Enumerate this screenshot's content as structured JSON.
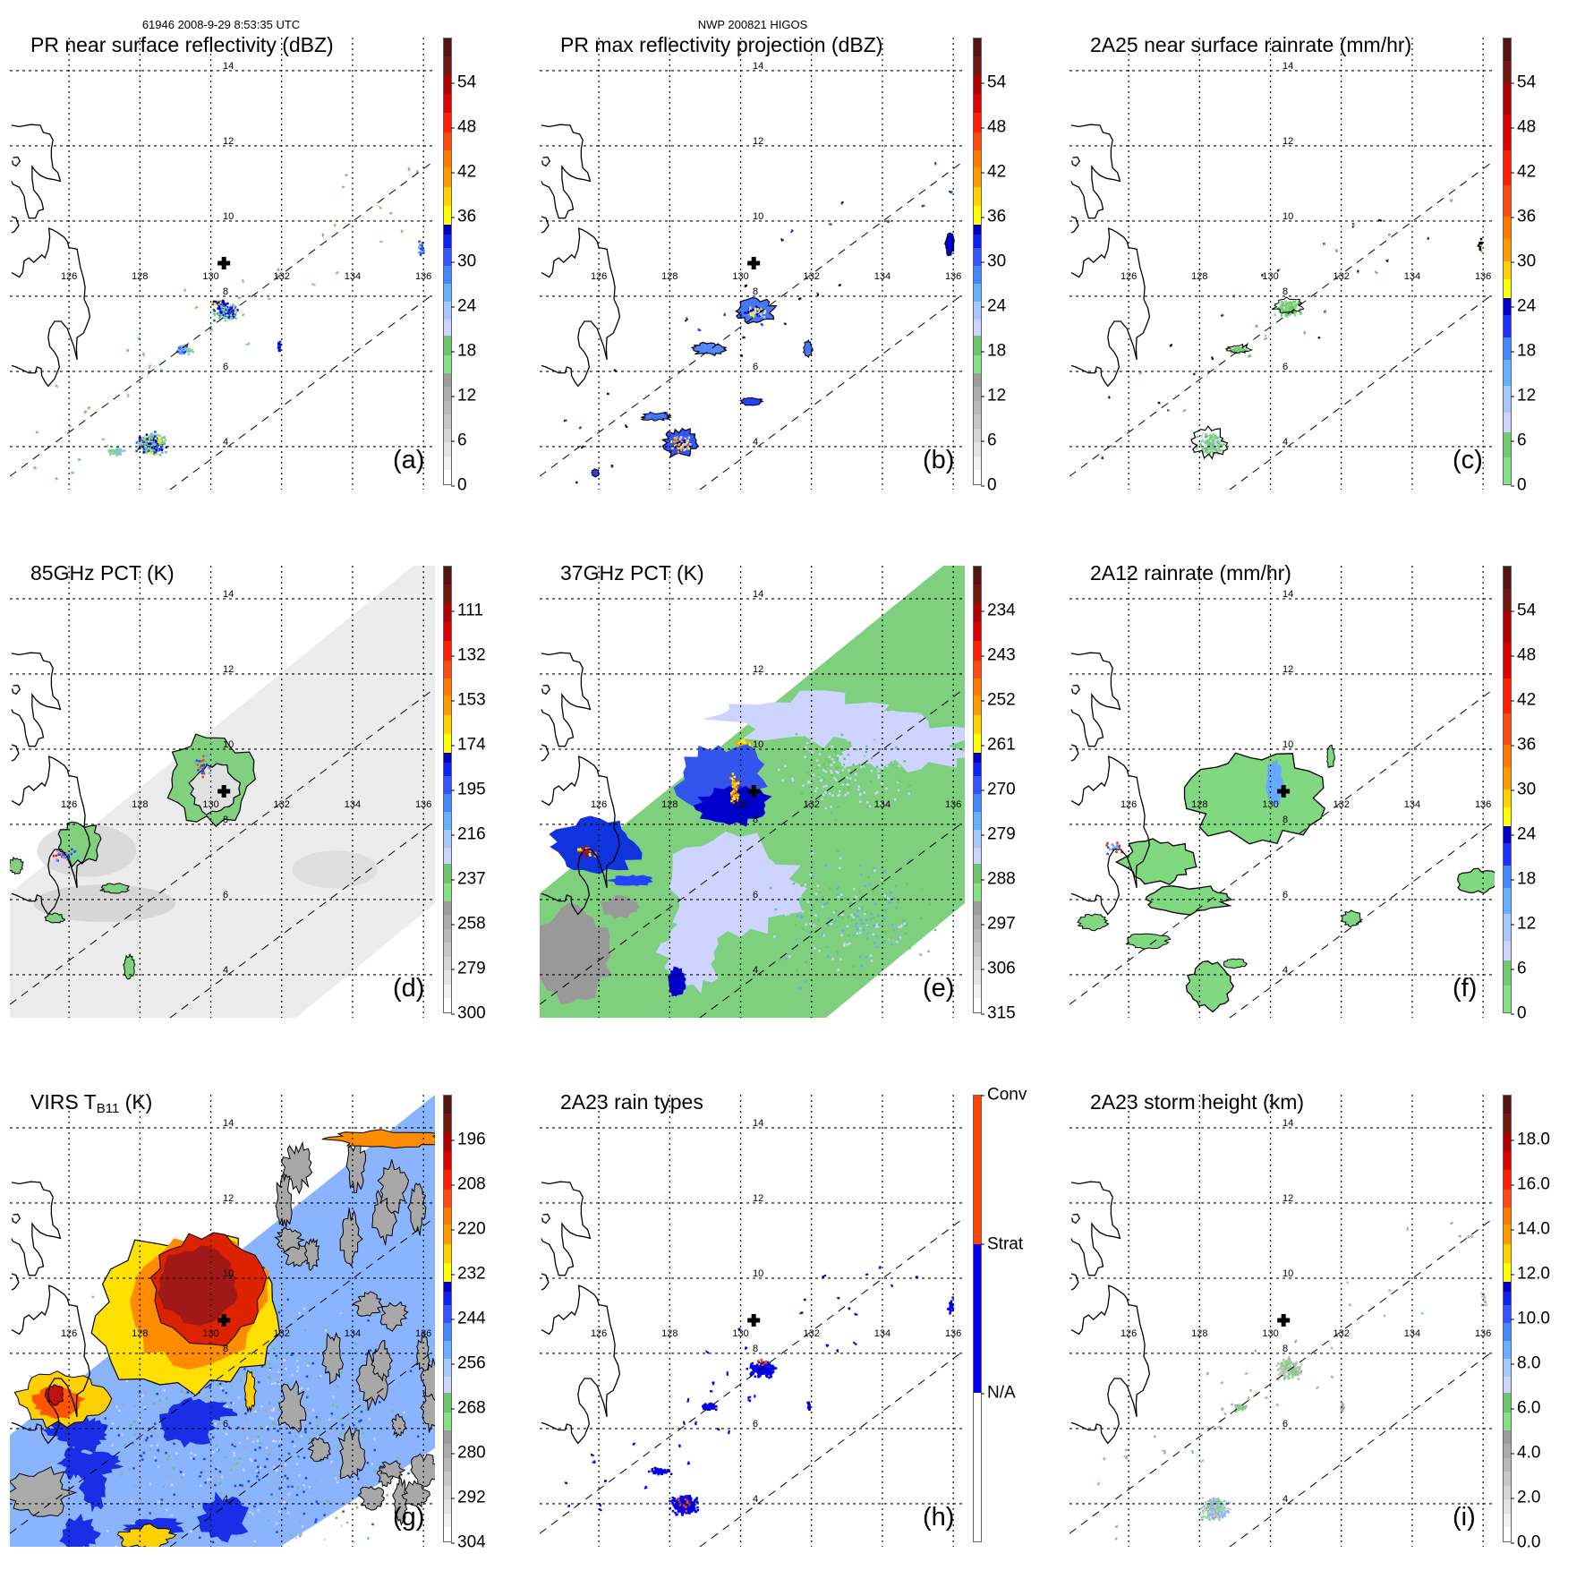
{
  "header": {
    "orbit_time": "61946 2008-9-29 8:53:35 UTC",
    "storm": "NWP 200821 HIGOS"
  },
  "lon_labels": [
    "126",
    "128",
    "130",
    "132",
    "134",
    "136"
  ],
  "lat_labels": [
    "14",
    "12",
    "10",
    "8",
    "6",
    "4"
  ],
  "panels": [
    {
      "id": "a",
      "title": "PR near surface reflectivity (dBZ)",
      "label": "(a)",
      "colorbar_range": [
        0,
        60
      ],
      "ticks": [
        {
          "text": "54",
          "value": 54
        },
        {
          "text": "48",
          "value": 48
        },
        {
          "text": "42",
          "value": 42
        },
        {
          "text": "36",
          "value": 36
        },
        {
          "text": "30",
          "value": 30
        },
        {
          "text": "24",
          "value": 24
        },
        {
          "text": "18",
          "value": 18
        },
        {
          "text": "12",
          "value": 12
        },
        {
          "text": "6",
          "value": 6
        },
        {
          "text": "0",
          "value": 0
        }
      ]
    },
    {
      "id": "b",
      "title": "PR max reflectivity projection (dBZ)",
      "label": "(b)",
      "colorbar_range": [
        0,
        60
      ],
      "ticks": [
        {
          "text": "54",
          "value": 54
        },
        {
          "text": "48",
          "value": 48
        },
        {
          "text": "42",
          "value": 42
        },
        {
          "text": "36",
          "value": 36
        },
        {
          "text": "30",
          "value": 30
        },
        {
          "text": "24",
          "value": 24
        },
        {
          "text": "18",
          "value": 18
        },
        {
          "text": "12",
          "value": 12
        },
        {
          "text": "6",
          "value": 6
        },
        {
          "text": "0",
          "value": 0
        }
      ]
    },
    {
      "id": "c",
      "title": "2A25 near surface rainrate (mm/hr)",
      "label": "(c)",
      "colorbar_range": [
        0,
        60
      ],
      "ticks": [
        {
          "text": "54",
          "value": 54
        },
        {
          "text": "48",
          "value": 48
        },
        {
          "text": "42",
          "value": 42
        },
        {
          "text": "36",
          "value": 36
        },
        {
          "text": "30",
          "value": 30
        },
        {
          "text": "24",
          "value": 24
        },
        {
          "text": "18",
          "value": 18
        },
        {
          "text": "12",
          "value": 12
        },
        {
          "text": "6",
          "value": 6
        },
        {
          "text": "0",
          "value": 0
        }
      ]
    },
    {
      "id": "d",
      "title": "85GHz PCT (K)",
      "label": "(d)",
      "colorbar_range": [
        300,
        90
      ],
      "ticks": [
        {
          "text": "111",
          "value": 111
        },
        {
          "text": "132",
          "value": 132
        },
        {
          "text": "153",
          "value": 153
        },
        {
          "text": "174",
          "value": 174
        },
        {
          "text": "195",
          "value": 195
        },
        {
          "text": "216",
          "value": 216
        },
        {
          "text": "237",
          "value": 237
        },
        {
          "text": "258",
          "value": 258
        },
        {
          "text": "279",
          "value": 279
        },
        {
          "text": "300",
          "value": 300
        }
      ]
    },
    {
      "id": "e",
      "title": "37GHz PCT (K)",
      "label": "(e)",
      "colorbar_range": [
        315,
        225
      ],
      "ticks": [
        {
          "text": "234",
          "value": 234
        },
        {
          "text": "243",
          "value": 243
        },
        {
          "text": "252",
          "value": 252
        },
        {
          "text": "261",
          "value": 261
        },
        {
          "text": "270",
          "value": 270
        },
        {
          "text": "279",
          "value": 279
        },
        {
          "text": "288",
          "value": 288
        },
        {
          "text": "297",
          "value": 297
        },
        {
          "text": "306",
          "value": 306
        },
        {
          "text": "315",
          "value": 315
        }
      ]
    },
    {
      "id": "f",
      "title": "2A12 rainrate (mm/hr)",
      "label": "(f)",
      "colorbar_range": [
        0,
        60
      ],
      "ticks": [
        {
          "text": "54",
          "value": 54
        },
        {
          "text": "48",
          "value": 48
        },
        {
          "text": "42",
          "value": 42
        },
        {
          "text": "36",
          "value": 36
        },
        {
          "text": "30",
          "value": 30
        },
        {
          "text": "24",
          "value": 24
        },
        {
          "text": "18",
          "value": 18
        },
        {
          "text": "12",
          "value": 12
        },
        {
          "text": "6",
          "value": 6
        },
        {
          "text": "0",
          "value": 0
        }
      ]
    },
    {
      "id": "g",
      "title": "VIRS T",
      "title_sub": "B11",
      "title_suffix": " (K)",
      "label": "(g)",
      "colorbar_range": [
        304,
        184
      ],
      "ticks": [
        {
          "text": "196",
          "value": 196
        },
        {
          "text": "208",
          "value": 208
        },
        {
          "text": "220",
          "value": 220
        },
        {
          "text": "232",
          "value": 232
        },
        {
          "text": "244",
          "value": 244
        },
        {
          "text": "256",
          "value": 256
        },
        {
          "text": "268",
          "value": 268
        },
        {
          "text": "280",
          "value": 280
        },
        {
          "text": "292",
          "value": 292
        },
        {
          "text": "304",
          "value": 304
        }
      ]
    },
    {
      "id": "h",
      "title": "2A23 rain types",
      "label": "(h)",
      "colorbar_range": [
        0,
        3
      ],
      "ticks": [
        {
          "text": "Conv",
          "value": 3
        },
        {
          "text": "Strat",
          "value": 2
        },
        {
          "text": "N/A",
          "value": 1
        }
      ]
    },
    {
      "id": "i",
      "title": "2A23 storm height (km)",
      "label": "(i)",
      "colorbar_range": [
        0,
        20
      ],
      "ticks": [
        {
          "text": "18.0",
          "value": 18
        },
        {
          "text": "16.0",
          "value": 16
        },
        {
          "text": "14.0",
          "value": 14
        },
        {
          "text": "12.0",
          "value": 12
        },
        {
          "text": "10.0",
          "value": 10
        },
        {
          "text": "8.0",
          "value": 8
        },
        {
          "text": "6.0",
          "value": 6
        },
        {
          "text": "4.0",
          "value": 4
        },
        {
          "text": "2.0",
          "value": 2
        },
        {
          "text": "0.0",
          "value": 0
        }
      ]
    }
  ]
}
